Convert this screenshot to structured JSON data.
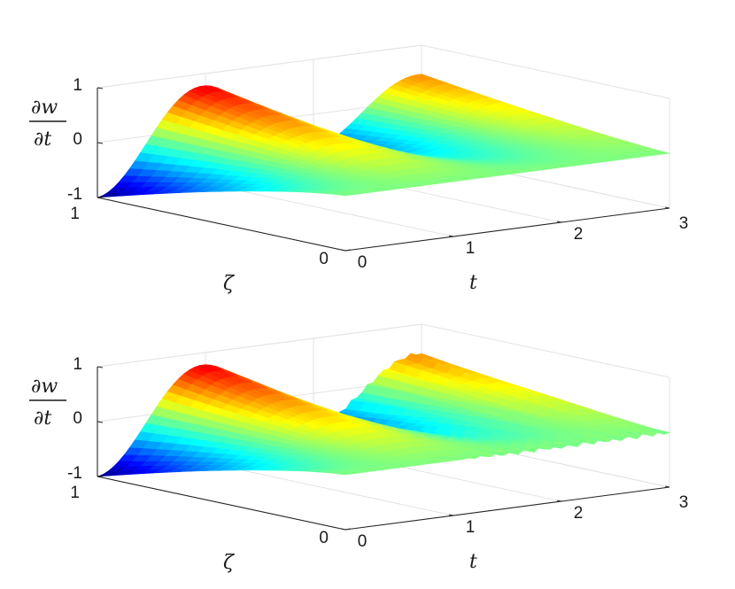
{
  "chart_data": [
    {
      "type": "surface",
      "panel": "top",
      "zlabel_num": "∂w",
      "zlabel_den": "∂t",
      "xlabel": "t",
      "ylabel": "ζ",
      "x_ticks": [
        "0",
        "1",
        "2",
        "3"
      ],
      "y_ticks": [
        "0",
        "1"
      ],
      "z_ticks": [
        "-1",
        "0",
        "1"
      ],
      "xlim": [
        0,
        3
      ],
      "ylim": [
        0,
        1
      ],
      "zlim": [
        -1,
        1
      ],
      "colormap": "jet",
      "surface": "dw/dt(t, zeta) smooth damped oscillation",
      "noise": 0
    },
    {
      "type": "surface",
      "panel": "bottom",
      "zlabel_num": "∂w",
      "zlabel_den": "∂t",
      "xlabel": "t",
      "ylabel": "ζ",
      "x_ticks": [
        "0",
        "1",
        "2",
        "3"
      ],
      "y_ticks": [
        "0",
        "1"
      ],
      "z_ticks": [
        "-1",
        "0",
        "1"
      ],
      "xlim": [
        0,
        3
      ],
      "ylim": [
        0,
        1
      ],
      "zlim": [
        -1,
        1
      ],
      "colormap": "jet",
      "surface": "dw/dt(t, zeta) with oscillatory ripples for t > 1",
      "noise": 1
    }
  ]
}
